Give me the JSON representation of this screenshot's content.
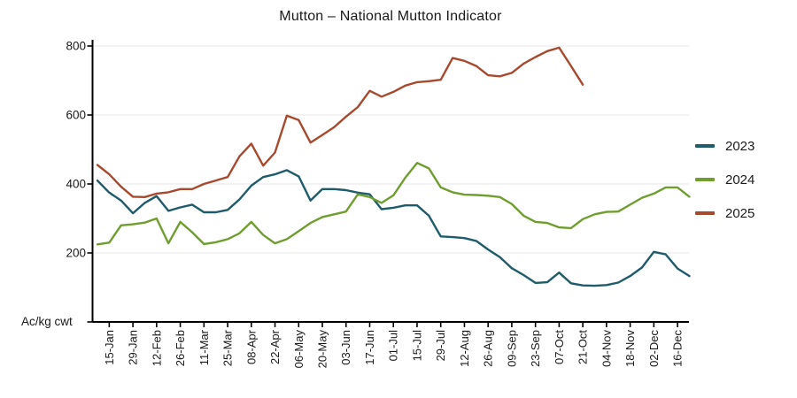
{
  "title": "Mutton – National Mutton Indicator",
  "unit_label": "Ac/kg cwt",
  "colors": {
    "series_2023": "#1e5b6b",
    "series_2024": "#6f9e2f",
    "series_2025": "#a8492e",
    "gridline": "#ececec",
    "axis": "#000000",
    "text": "#1a1a1a"
  },
  "chart_data": {
    "type": "line",
    "title": "Mutton – National Mutton Indicator",
    "xlabel": "",
    "ylabel": "Ac/kg cwt",
    "ylim": [
      0,
      800
    ],
    "y_ticks": [
      200,
      400,
      600,
      800
    ],
    "grid": "horizontal",
    "legend_position": "right",
    "x": [
      "08-Jan",
      "15-Jan",
      "22-Jan",
      "29-Jan",
      "05-Feb",
      "12-Feb",
      "19-Feb",
      "26-Feb",
      "04-Mar",
      "11-Mar",
      "18-Mar",
      "25-Mar",
      "01-Apr",
      "08-Apr",
      "15-Apr",
      "22-Apr",
      "29-Apr",
      "06-May",
      "13-May",
      "20-May",
      "27-May",
      "03-Jun",
      "10-Jun",
      "17-Jun",
      "24-Jun",
      "01-Jul",
      "08-Jul",
      "15-Jul",
      "22-Jul",
      "29-Jul",
      "05-Aug",
      "12-Aug",
      "19-Aug",
      "26-Aug",
      "02-Sep",
      "09-Sep",
      "16-Sep",
      "23-Sep",
      "30-Sep",
      "07-Oct",
      "14-Oct",
      "21-Oct",
      "28-Oct",
      "04-Nov",
      "11-Nov",
      "18-Nov",
      "25-Nov",
      "02-Dec",
      "09-Dec",
      "16-Dec",
      "23-Dec"
    ],
    "x_tick_labels": [
      "15-Jan",
      "29-Jan",
      "12-Feb",
      "26-Feb",
      "11-Mar",
      "25-Mar",
      "08-Apr",
      "22-Apr",
      "06-May",
      "20-May",
      "03-Jun",
      "17-Jun",
      "01-Jul",
      "15-Jul",
      "29-Jul",
      "12-Aug",
      "26-Aug",
      "09-Sep",
      "23-Sep",
      "07-Oct",
      "21-Oct",
      "04-Nov",
      "18-Nov",
      "02-Dec",
      "16-Dec"
    ],
    "series": [
      {
        "name": "2023",
        "color": "#1e5b6b",
        "values": [
          410,
          375,
          352,
          315,
          345,
          365,
          322,
          332,
          340,
          318,
          318,
          325,
          355,
          395,
          420,
          428,
          440,
          422,
          352,
          385,
          385,
          382,
          375,
          370,
          327,
          331,
          338,
          338,
          308,
          248,
          246,
          243,
          235,
          210,
          188,
          156,
          136,
          113,
          115,
          143,
          112,
          106,
          105,
          107,
          114,
          133,
          158,
          203,
          196,
          155,
          133
        ]
      },
      {
        "name": "2024",
        "color": "#6f9e2f",
        "values": [
          225,
          230,
          280,
          283,
          288,
          300,
          228,
          290,
          260,
          226,
          231,
          240,
          257,
          290,
          252,
          228,
          240,
          263,
          287,
          304,
          312,
          320,
          370,
          362,
          345,
          367,
          418,
          461,
          445,
          390,
          376,
          369,
          368,
          366,
          362,
          342,
          308,
          290,
          287,
          274,
          272,
          298,
          312,
          319,
          320,
          340,
          360,
          372,
          390,
          390,
          363
        ]
      },
      {
        "name": "2025",
        "color": "#a8492e",
        "values": [
          455,
          428,
          392,
          363,
          362,
          372,
          376,
          385,
          385,
          400,
          410,
          420,
          480,
          517,
          453,
          491,
          598,
          585,
          520,
          542,
          565,
          595,
          623,
          670,
          653,
          667,
          685,
          695,
          698,
          702,
          765,
          757,
          742,
          715,
          712,
          722,
          749,
          768,
          785,
          795,
          742,
          688
        ]
      }
    ]
  }
}
